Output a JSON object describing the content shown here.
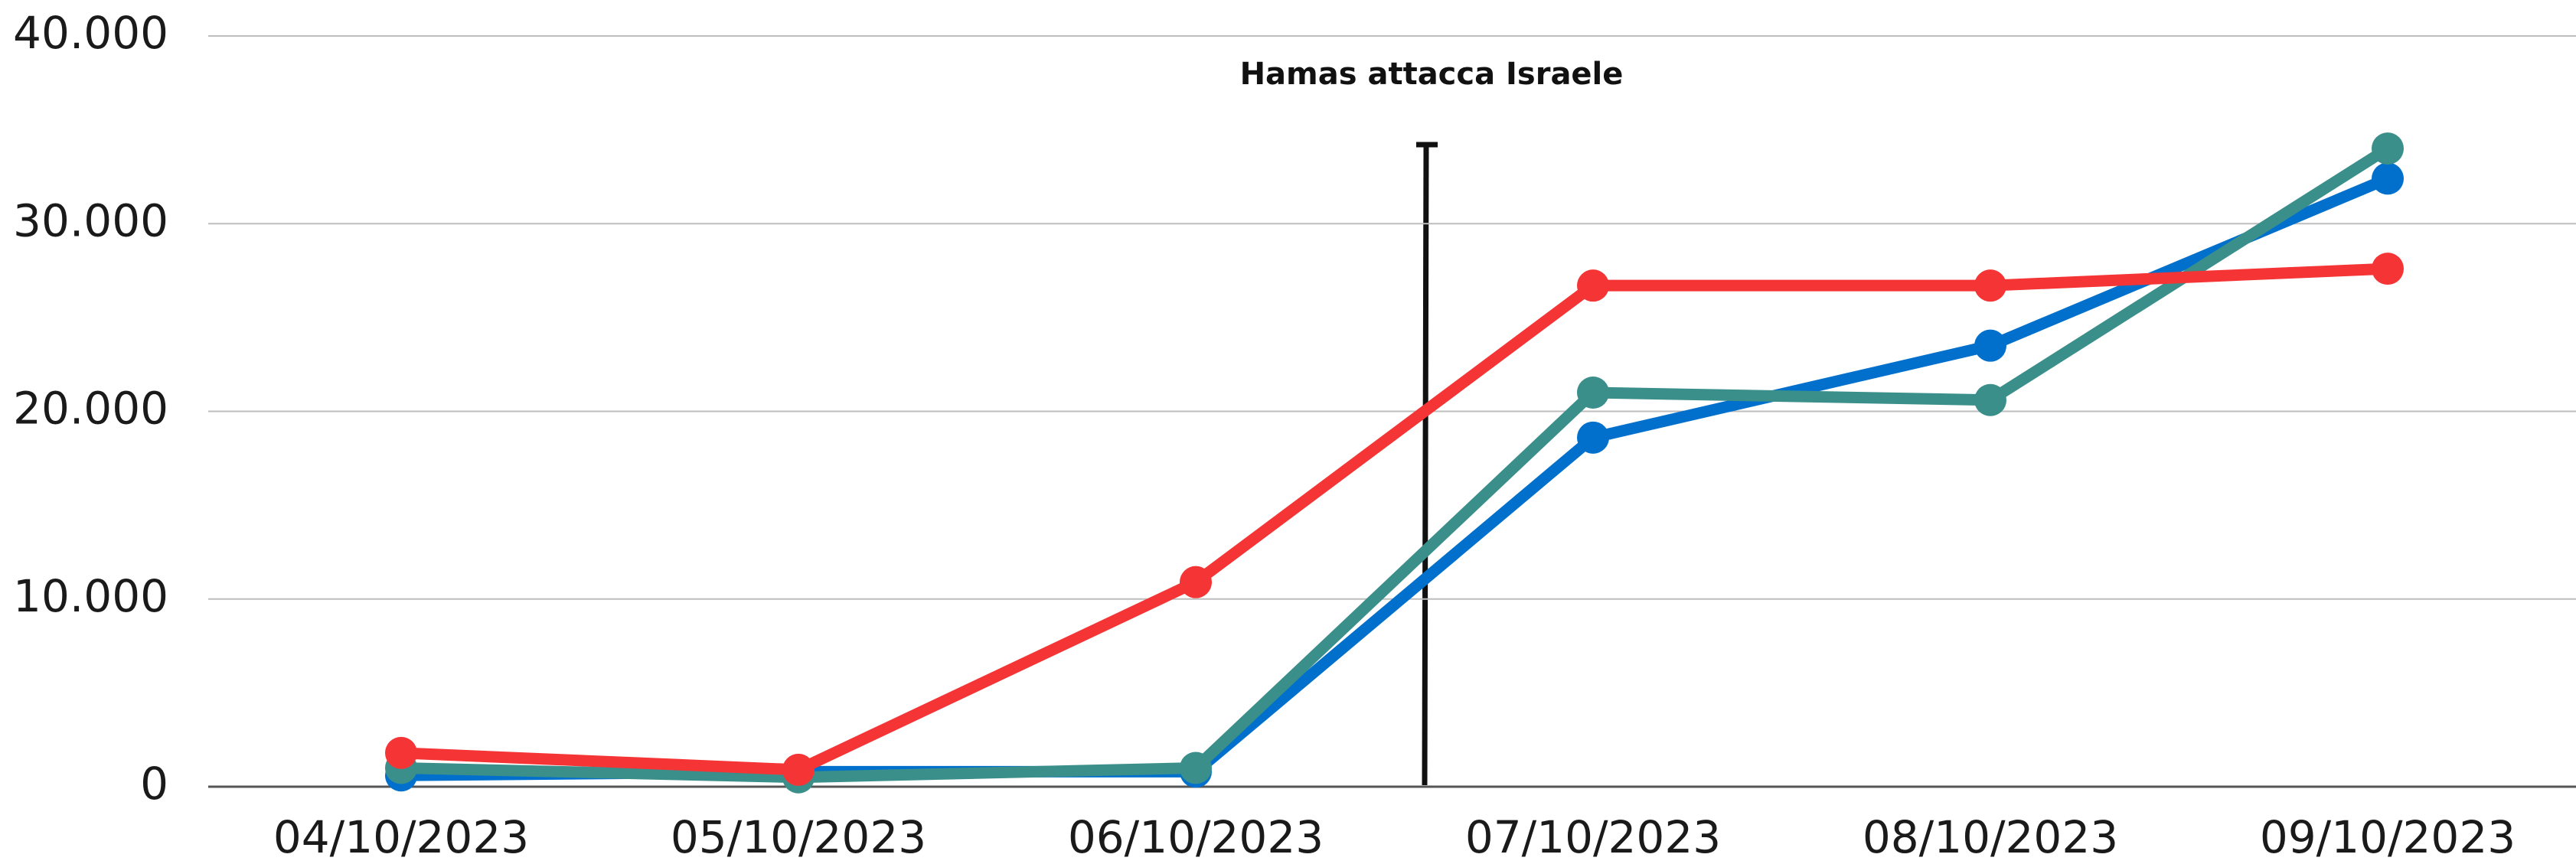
{
  "chart_data": {
    "type": "line",
    "annotation": "Hamas attacca Israele",
    "categories": [
      "04/10/2023",
      "05/10/2023",
      "06/10/2023",
      "07/10/2023",
      "08/10/2023",
      "09/10/2023"
    ],
    "series": [
      {
        "color": "#0070cc",
        "values": [
          600,
          800,
          800,
          18600,
          23500,
          32400
        ]
      },
      {
        "color": "#3a8f8a",
        "values": [
          1000,
          500,
          1000,
          21000,
          20600,
          34000
        ]
      },
      {
        "color": "#f53535",
        "values": [
          1800,
          900,
          10900,
          26700,
          26700,
          27600
        ]
      }
    ],
    "ylim": [
      0,
      40000
    ],
    "yticks": [
      0,
      {
        "value": 10000,
        "label": "10.000"
      },
      {
        "value": 20000,
        "label": "20.000"
      },
      {
        "value": 30000,
        "label": "30.000"
      },
      {
        "value": 40000,
        "label": "40.000"
      }
    ],
    "grid": true
  }
}
